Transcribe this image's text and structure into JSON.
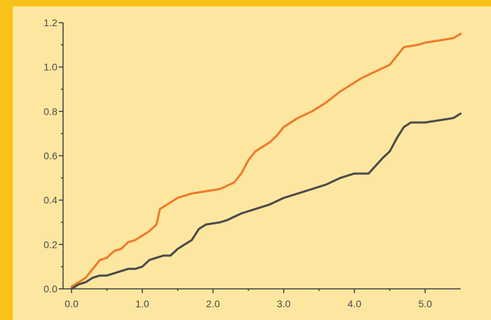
{
  "chart_data": {
    "type": "line",
    "title": "",
    "xlabel": "",
    "ylabel": "",
    "xlim": [
      0.0,
      5.5
    ],
    "ylim": [
      0.0,
      1.2
    ],
    "x_ticks": [
      "0.0",
      "1.0",
      "2.0",
      "3.0",
      "4.0",
      "5.0"
    ],
    "y_ticks": [
      "0.0",
      "0.2",
      "0.4",
      "0.6",
      "0.8",
      "1.0",
      "1.2"
    ],
    "grid": false,
    "legend": "none",
    "series": [
      {
        "color": "#f07a2a",
        "points": [
          [
            0.0,
            0.01
          ],
          [
            0.1,
            0.03
          ],
          [
            0.2,
            0.05
          ],
          [
            0.3,
            0.09
          ],
          [
            0.4,
            0.13
          ],
          [
            0.5,
            0.14
          ],
          [
            0.6,
            0.17
          ],
          [
            0.7,
            0.18
          ],
          [
            0.8,
            0.21
          ],
          [
            0.9,
            0.22
          ],
          [
            1.0,
            0.24
          ],
          [
            1.1,
            0.26
          ],
          [
            1.2,
            0.29
          ],
          [
            1.25,
            0.36
          ],
          [
            1.3,
            0.37
          ],
          [
            1.5,
            0.41
          ],
          [
            1.7,
            0.43
          ],
          [
            1.9,
            0.44
          ],
          [
            2.1,
            0.45
          ],
          [
            2.3,
            0.48
          ],
          [
            2.4,
            0.52
          ],
          [
            2.5,
            0.58
          ],
          [
            2.6,
            0.62
          ],
          [
            2.8,
            0.66
          ],
          [
            2.9,
            0.69
          ],
          [
            3.0,
            0.73
          ],
          [
            3.2,
            0.77
          ],
          [
            3.4,
            0.8
          ],
          [
            3.6,
            0.84
          ],
          [
            3.8,
            0.89
          ],
          [
            3.9,
            0.91
          ],
          [
            4.1,
            0.95
          ],
          [
            4.3,
            0.98
          ],
          [
            4.5,
            1.01
          ],
          [
            4.7,
            1.09
          ],
          [
            4.9,
            1.1
          ],
          [
            5.0,
            1.11
          ],
          [
            5.2,
            1.12
          ],
          [
            5.4,
            1.13
          ],
          [
            5.5,
            1.15
          ]
        ]
      },
      {
        "color": "#4a4a4a",
        "points": [
          [
            0.0,
            0.0
          ],
          [
            0.1,
            0.02
          ],
          [
            0.2,
            0.03
          ],
          [
            0.3,
            0.05
          ],
          [
            0.4,
            0.06
          ],
          [
            0.5,
            0.06
          ],
          [
            0.6,
            0.07
          ],
          [
            0.7,
            0.08
          ],
          [
            0.8,
            0.09
          ],
          [
            0.9,
            0.09
          ],
          [
            1.0,
            0.1
          ],
          [
            1.1,
            0.13
          ],
          [
            1.2,
            0.14
          ],
          [
            1.3,
            0.15
          ],
          [
            1.4,
            0.15
          ],
          [
            1.5,
            0.18
          ],
          [
            1.6,
            0.2
          ],
          [
            1.7,
            0.22
          ],
          [
            1.8,
            0.27
          ],
          [
            1.9,
            0.29
          ],
          [
            2.1,
            0.3
          ],
          [
            2.2,
            0.31
          ],
          [
            2.4,
            0.34
          ],
          [
            2.6,
            0.36
          ],
          [
            2.8,
            0.38
          ],
          [
            3.0,
            0.41
          ],
          [
            3.2,
            0.43
          ],
          [
            3.4,
            0.45
          ],
          [
            3.6,
            0.47
          ],
          [
            3.8,
            0.5
          ],
          [
            4.0,
            0.52
          ],
          [
            4.2,
            0.52
          ],
          [
            4.4,
            0.59
          ],
          [
            4.5,
            0.62
          ],
          [
            4.6,
            0.68
          ],
          [
            4.7,
            0.73
          ],
          [
            4.8,
            0.75
          ],
          [
            5.0,
            0.75
          ],
          [
            5.2,
            0.76
          ],
          [
            5.4,
            0.77
          ],
          [
            5.5,
            0.79
          ]
        ]
      }
    ]
  }
}
